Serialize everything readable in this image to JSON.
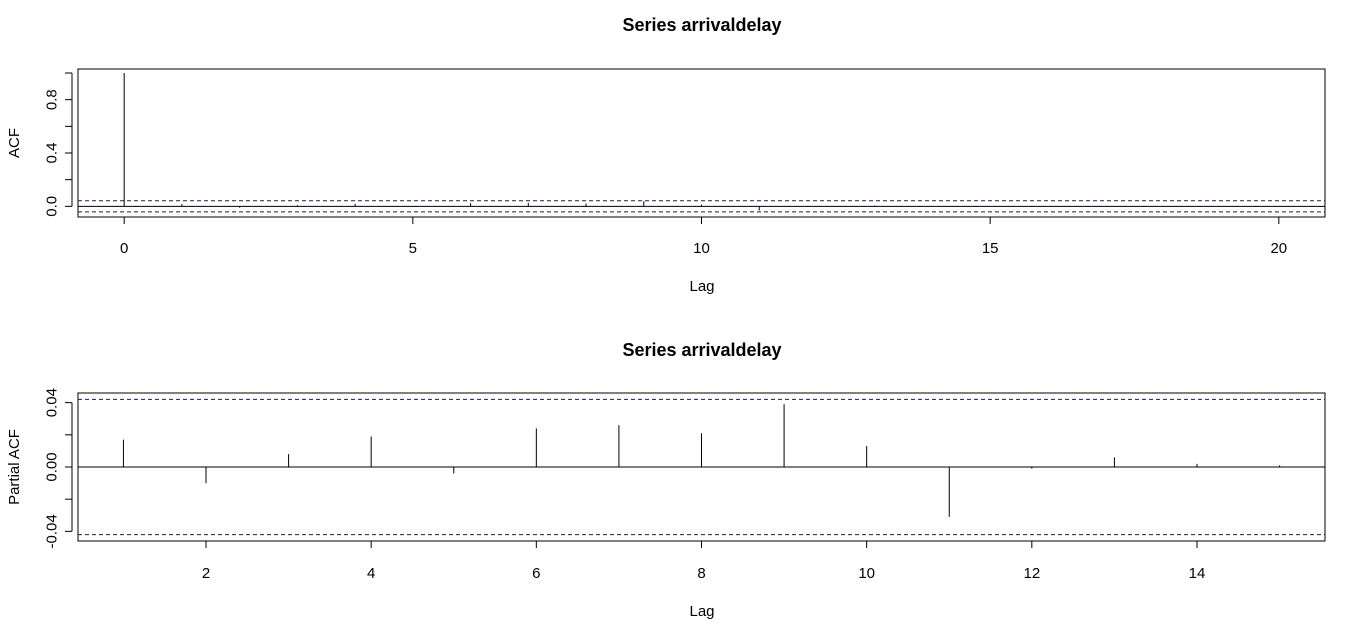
{
  "chart_data": [
    {
      "type": "bar",
      "title": "Series  arrivaldelay",
      "xlabel": "Lag",
      "ylabel": "ACF",
      "xlim": [
        -0.8,
        20.8
      ],
      "ylim": [
        -0.08,
        1.03
      ],
      "x_ticks": [
        0,
        5,
        10,
        15,
        20
      ],
      "y_ticks": [
        0.0,
        0.2,
        0.4,
        0.6,
        0.8,
        1.0
      ],
      "y_tick_labels": [
        {
          "value": 0.0,
          "label": "0.0"
        },
        {
          "value": 0.4,
          "label": "0.4"
        },
        {
          "value": 0.8,
          "label": "0.8"
        }
      ],
      "confidence_bounds": [
        0.042,
        -0.042
      ],
      "x": [
        0,
        1,
        2,
        3,
        4,
        5,
        6,
        7,
        8,
        9,
        10,
        11,
        12,
        13,
        14,
        15,
        16,
        17,
        18,
        19,
        20
      ],
      "values": [
        1.0,
        0.017,
        -0.01,
        0.008,
        0.019,
        -0.004,
        0.024,
        0.026,
        0.021,
        0.039,
        0.013,
        -0.031,
        -0.001,
        0.006,
        0.002,
        0.001,
        0.0,
        0.0,
        0.0,
        0.0,
        0.0
      ]
    },
    {
      "type": "bar",
      "title": "Series  arrivaldelay",
      "xlabel": "Lag",
      "ylabel": "Partial ACF",
      "xlim": [
        0.45,
        15.55
      ],
      "ylim": [
        -0.046,
        0.046
      ],
      "x_ticks": [
        2,
        4,
        6,
        8,
        10,
        12,
        14
      ],
      "y_ticks": [
        -0.04,
        -0.02,
        0.0,
        0.02,
        0.04
      ],
      "y_tick_labels": [
        {
          "value": -0.04,
          "label": "-0.04"
        },
        {
          "value": 0.0,
          "label": "0.00"
        },
        {
          "value": 0.04,
          "label": "0.04"
        }
      ],
      "confidence_bounds": [
        0.042,
        -0.042
      ],
      "x": [
        1,
        2,
        3,
        4,
        5,
        6,
        7,
        8,
        9,
        10,
        11,
        12,
        13,
        14,
        15
      ],
      "values": [
        0.017,
        -0.01,
        0.008,
        0.019,
        -0.004,
        0.024,
        0.026,
        0.021,
        0.039,
        0.013,
        -0.031,
        -0.001,
        0.006,
        0.002,
        0.001
      ]
    }
  ]
}
